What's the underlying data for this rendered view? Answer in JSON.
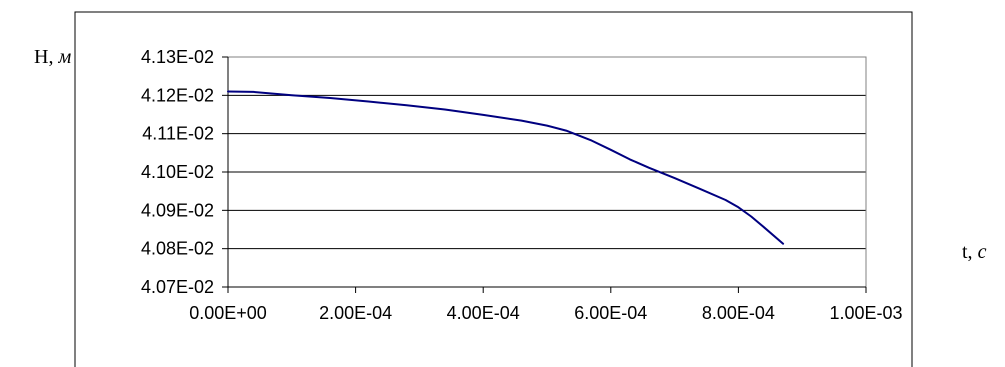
{
  "chart_data": {
    "type": "line",
    "title": "",
    "ylabel": {
      "text": "H, ",
      "unit": "м"
    },
    "xlabel": {
      "text": "t, ",
      "unit": "c"
    },
    "xlim": [
      0,
      0.001
    ],
    "ylim": [
      0.0407,
      0.0413
    ],
    "x_ticks": [
      0,
      0.0002,
      0.0004,
      0.0006,
      0.0008,
      0.001
    ],
    "x_tick_labels": [
      "0.00E+00",
      "2.00E-04",
      "4.00E-04",
      "6.00E-04",
      "8.00E-04",
      "1.00E-03"
    ],
    "y_ticks": [
      0.0407,
      0.0408,
      0.0409,
      0.041,
      0.0411,
      0.0412,
      0.0413
    ],
    "y_tick_labels": [
      "4.07E-02",
      "4.08E-02",
      "4.09E-02",
      "4.10E-02",
      "4.11E-02",
      "4.12E-02",
      "4.13E-02"
    ],
    "grid": "horizontal",
    "legend": "none",
    "series": [
      {
        "color": "#000080",
        "x": [
          0,
          4e-05,
          0.0001,
          0.00016,
          0.00022,
          0.00028,
          0.00034,
          0.0004,
          0.00046,
          0.0005,
          0.00053,
          0.00057,
          0.0006,
          0.00063,
          0.00066,
          0.0007,
          0.00074,
          0.00078,
          0.0008,
          0.00082,
          0.00084,
          0.00087
        ],
        "y": [
          0.04121,
          0.041209,
          0.0412,
          0.041193,
          0.041184,
          0.041174,
          0.041163,
          0.041149,
          0.041134,
          0.041121,
          0.041108,
          0.041082,
          0.041058,
          0.041033,
          0.041011,
          0.040984,
          0.040956,
          0.040927,
          0.040908,
          0.040884,
          0.040856,
          0.040813
        ]
      }
    ]
  }
}
